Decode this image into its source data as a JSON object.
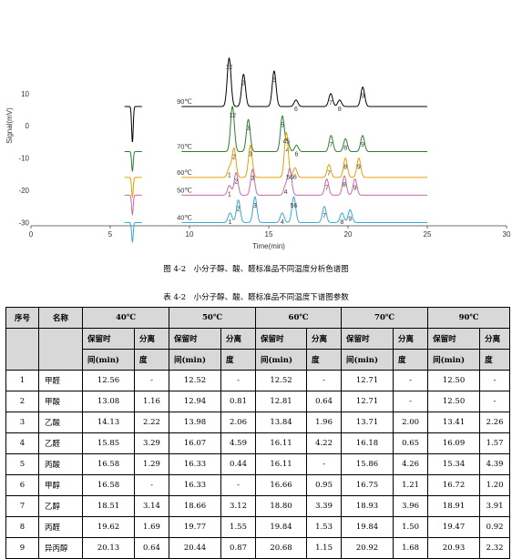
{
  "chart_data": {
    "type": "line",
    "ylabel": "Signal(mV)",
    "xlabel": "Time(min)",
    "xlim": [
      0,
      30
    ],
    "ylim": [
      -31,
      30
    ],
    "xticks": [
      0,
      5,
      10,
      15,
      20,
      25,
      30
    ],
    "yticks": [
      10,
      0,
      -10,
      -20,
      -30
    ],
    "grid": false,
    "series": [
      {
        "name": "90℃",
        "color": "#000000",
        "baseline": 6,
        "dip": {
          "x": 6.4,
          "depth": 11
        },
        "peaks": [
          {
            "label": "12",
            "x": 12.5,
            "h": 15
          },
          {
            "label": "3",
            "x": 13.41,
            "h": 10
          },
          {
            "label": "5",
            "x": 15.34,
            "h": 11
          },
          {
            "label": "6",
            "x": 16.72,
            "h": 2
          },
          {
            "label": "7",
            "x": 18.91,
            "h": 4
          },
          {
            "label": "8",
            "x": 19.47,
            "h": 2
          },
          {
            "label": "9",
            "x": 20.93,
            "h": 6
          }
        ]
      },
      {
        "name": "70℃",
        "color": "#2e7d32",
        "baseline": -8,
        "dip": {
          "x": 6.4,
          "depth": 6
        },
        "peaks": [
          {
            "label": "12",
            "x": 12.71,
            "h": 14
          },
          {
            "label": "3",
            "x": 13.71,
            "h": 10
          },
          {
            "label": "5",
            "x": 15.86,
            "h": 11
          },
          {
            "label": "4",
            "x": 16.18,
            "h": 3
          },
          {
            "label": "6",
            "x": 16.75,
            "h": 2
          },
          {
            "label": "7",
            "x": 18.93,
            "h": 5
          },
          {
            "label": "8",
            "x": 19.84,
            "h": 4
          },
          {
            "label": "9",
            "x": 20.92,
            "h": 5
          }
        ]
      },
      {
        "name": "60℃",
        "color": "#e6a000",
        "baseline": -16,
        "dip": {
          "x": 6.4,
          "depth": 6
        },
        "peaks": [
          {
            "label": "1",
            "x": 12.52,
            "h": 3
          },
          {
            "label": "2",
            "x": 12.81,
            "h": 9
          },
          {
            "label": "3",
            "x": 13.84,
            "h": 10
          },
          {
            "label": "45",
            "x": 16.11,
            "h": 14
          },
          {
            "label": "6",
            "x": 16.66,
            "h": 3
          },
          {
            "label": "7",
            "x": 18.8,
            "h": 4
          },
          {
            "label": "8",
            "x": 19.84,
            "h": 6
          },
          {
            "label": "9",
            "x": 20.68,
            "h": 6
          }
        ]
      },
      {
        "name": "50℃",
        "color": "#c86aa8",
        "baseline": -21.5,
        "dip": {
          "x": 6.4,
          "depth": 6
        },
        "peaks": [
          {
            "label": "1",
            "x": 12.52,
            "h": 3
          },
          {
            "label": "2",
            "x": 12.94,
            "h": 7
          },
          {
            "label": "3",
            "x": 13.98,
            "h": 8
          },
          {
            "label": "4",
            "x": 16.07,
            "h": 3
          },
          {
            "label": "56",
            "x": 16.33,
            "h": 8
          },
          {
            "label": "7",
            "x": 18.66,
            "h": 5
          },
          {
            "label": "8",
            "x": 19.77,
            "h": 6
          },
          {
            "label": "9",
            "x": 20.44,
            "h": 5
          }
        ]
      },
      {
        "name": "40℃",
        "color": "#36a9d6",
        "baseline": -30,
        "dip": {
          "x": 6.4,
          "depth": 6
        },
        "peaks": [
          {
            "label": "1",
            "x": 12.56,
            "h": 3
          },
          {
            "label": "2",
            "x": 13.08,
            "h": 7
          },
          {
            "label": "3",
            "x": 14.13,
            "h": 8
          },
          {
            "label": "4",
            "x": 15.85,
            "h": 3
          },
          {
            "label": "56",
            "x": 16.58,
            "h": 8
          },
          {
            "label": "7",
            "x": 18.51,
            "h": 5
          },
          {
            "label": "8",
            "x": 19.62,
            "h": 3
          },
          {
            "label": "9",
            "x": 20.13,
            "h": 4
          }
        ]
      }
    ]
  },
  "figure_caption": "图 4-2　小分子醇、酸、醛标准品不同温度分析色谱图",
  "table_caption": "表 4-2　小分子醇、酸、醛标准品不同温度下谱图参数",
  "table": {
    "col_no": "序号",
    "col_name": "名称",
    "temps": [
      "40℃",
      "50℃",
      "60℃",
      "70℃",
      "90℃"
    ],
    "sub_rt_top": "保留时",
    "sub_rt_bottom": "间(min)",
    "sub_res_top": "分离",
    "sub_res_bottom": "度",
    "rows": [
      {
        "no": "1",
        "name": "甲醛",
        "vals": [
          "12.56",
          "-",
          "12.52",
          "-",
          "12.52",
          "-",
          "12.71",
          "-",
          "12.50",
          "-"
        ]
      },
      {
        "no": "2",
        "name": "甲酸",
        "vals": [
          "13.08",
          "1.16",
          "12.94",
          "0.81",
          "12.81",
          "0.64",
          "12.71",
          "-",
          "12.50",
          "-"
        ]
      },
      {
        "no": "3",
        "name": "乙酸",
        "vals": [
          "14.13",
          "2.22",
          "13.98",
          "2.06",
          "13.84",
          "1.96",
          "13.71",
          "2.00",
          "13.41",
          "2.26"
        ]
      },
      {
        "no": "4",
        "name": "乙醛",
        "vals": [
          "15.85",
          "3.29",
          "16.07",
          "4.59",
          "16.11",
          "4.22",
          "16.18",
          "0.65",
          "16.09",
          "1.57"
        ]
      },
      {
        "no": "5",
        "name": "丙酸",
        "vals": [
          "16.58",
          "1.29",
          "16.33",
          "0.44",
          "16.11",
          "-",
          "15.86",
          "4.26",
          "15.34",
          "4.39"
        ]
      },
      {
        "no": "6",
        "name": "甲醇",
        "vals": [
          "16.58",
          "-",
          "16.33",
          "-",
          "16.66",
          "0.95",
          "16.75",
          "1.21",
          "16.72",
          "1.20"
        ]
      },
      {
        "no": "7",
        "name": "乙醇",
        "vals": [
          "18.51",
          "3.14",
          "18.66",
          "3.12",
          "18.80",
          "3.39",
          "18.93",
          "3.96",
          "18.91",
          "3.91"
        ]
      },
      {
        "no": "8",
        "name": "丙醛",
        "vals": [
          "19.62",
          "1.69",
          "19.77",
          "1.55",
          "19.84",
          "1.53",
          "19.84",
          "1.50",
          "19.47",
          "0.92"
        ]
      },
      {
        "no": "9",
        "name": "异丙醇",
        "vals": [
          "20.13",
          "0.64",
          "20.44",
          "0.87",
          "20.68",
          "1.15",
          "20.92",
          "1.68",
          "20.93",
          "2.32"
        ]
      }
    ]
  }
}
